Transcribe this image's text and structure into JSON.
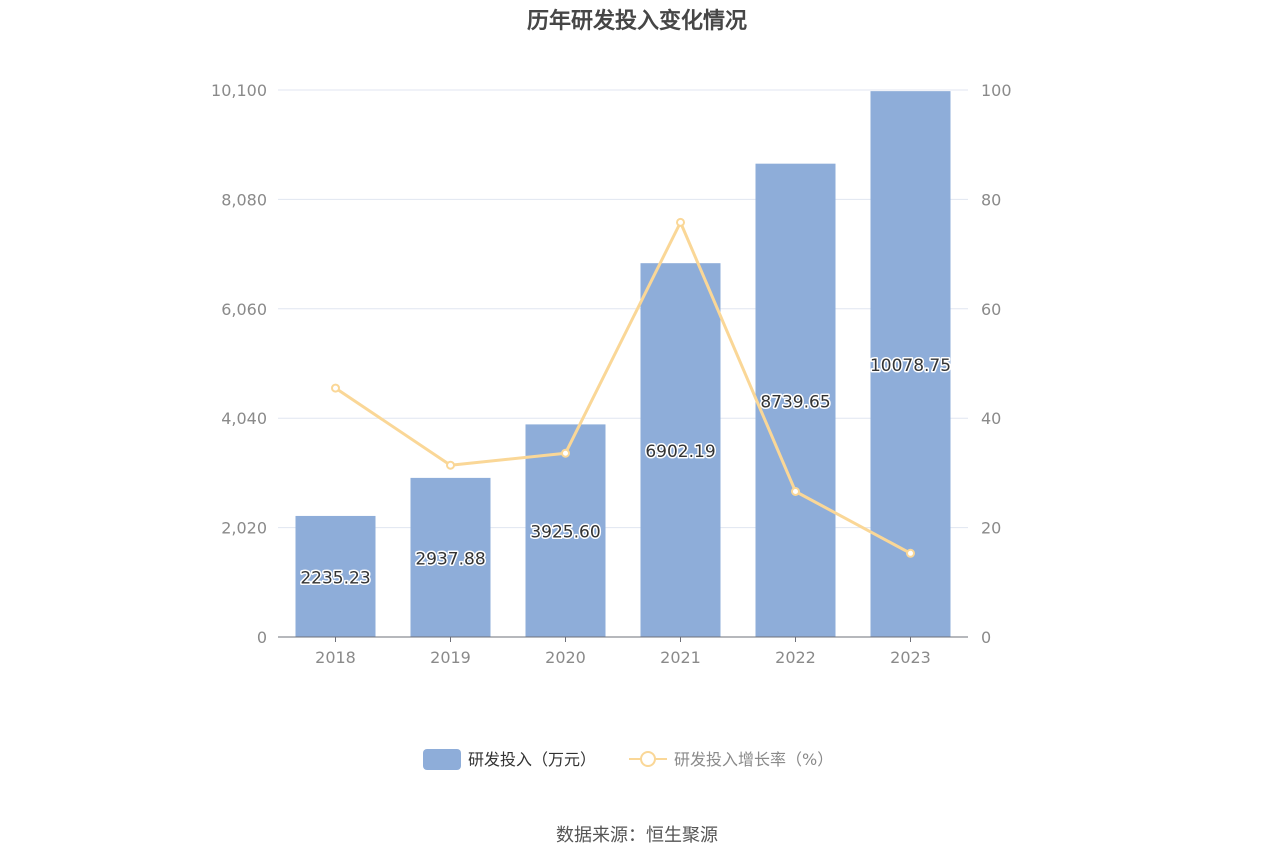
{
  "chart_data": {
    "type": "bar",
    "title": "历年研发投入变化情况",
    "categories": [
      "2018",
      "2019",
      "2020",
      "2021",
      "2022",
      "2023"
    ],
    "series": [
      {
        "name": "研发投入（万元）",
        "type": "bar",
        "axis": "left",
        "color": "#8eadd9",
        "values": [
          2235.23,
          2937.88,
          3925.6,
          6902.19,
          8739.65,
          10078.75
        ],
        "labels": [
          "2235.23",
          "2937.88",
          "3925.60",
          "6902.19",
          "8739.65",
          "10078.75"
        ]
      },
      {
        "name": "研发投入增长率（%）",
        "type": "line",
        "axis": "right",
        "color": "#fad797",
        "values": [
          45.5,
          31.4,
          33.6,
          75.8,
          26.6,
          15.3
        ]
      }
    ],
    "y_left": {
      "ylim": [
        0,
        10100
      ],
      "ticks": [
        "0",
        "2,020",
        "4,040",
        "6,060",
        "8,080",
        "10,100"
      ]
    },
    "y_right": {
      "ylim": [
        0,
        100
      ],
      "ticks": [
        "0",
        "20",
        "40",
        "60",
        "80",
        "100"
      ]
    },
    "grid": true,
    "legend": "bottom-center",
    "source": "数据来源：恒生聚源"
  }
}
